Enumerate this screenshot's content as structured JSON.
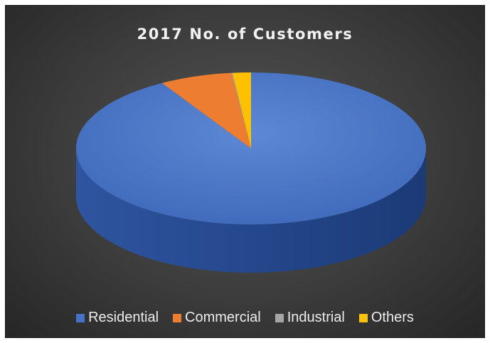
{
  "chart_data": {
    "type": "pie",
    "title": "2017 No. of Customers",
    "categories": [
      "Residential",
      "Commercial",
      "Industrial",
      "Others"
    ],
    "values": [
      91.5,
      6.7,
      0.1,
      1.7
    ],
    "colors": [
      "#4472C4",
      "#ED7D31",
      "#A5A5A5",
      "#FFC000"
    ],
    "style": "3d",
    "legend_position": "bottom"
  }
}
